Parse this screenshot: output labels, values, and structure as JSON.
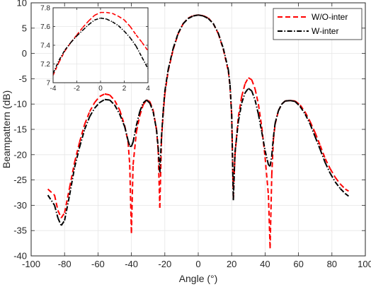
{
  "chart_data": [
    {
      "type": "line",
      "xlabel": "Angle (°)",
      "ylabel": "Beampattern (dB)",
      "xlim": [
        -100,
        100
      ],
      "ylim": [
        -40,
        10
      ],
      "xticks": [
        -100,
        -80,
        -60,
        -40,
        -20,
        0,
        20,
        40,
        60,
        80,
        100
      ],
      "yticks": [
        -40,
        -35,
        -30,
        -25,
        -20,
        -15,
        -10,
        -5,
        0,
        5,
        10
      ],
      "grid": true,
      "legend_position": "top-right",
      "series": [
        {
          "name": "W/O-inter",
          "color": "#ff0000",
          "style": "dashed",
          "x": [
            -90,
            -86,
            -84,
            -82,
            -80,
            -77,
            -74,
            -71,
            -68,
            -65,
            -62,
            -59,
            -56,
            -53,
            -50,
            -47,
            -44,
            -42,
            -41,
            -40,
            -39,
            -37,
            -35,
            -33,
            -31,
            -29,
            -27,
            -25,
            -24,
            -23,
            -22,
            -21,
            -20,
            -18,
            -15,
            -12,
            -9,
            -6,
            -3,
            0,
            3,
            6,
            9,
            12,
            15,
            18,
            19,
            20,
            21,
            22,
            24,
            26,
            28,
            30,
            32,
            34,
            36,
            38,
            40,
            42,
            43,
            44,
            45,
            46,
            48,
            50,
            52,
            55,
            58,
            61,
            64,
            67,
            70,
            73,
            76,
            79,
            82,
            85,
            88,
            90
          ],
          "y": [
            -26.8,
            -28,
            -31,
            -32.5,
            -31.5,
            -26.5,
            -21.5,
            -17.5,
            -14,
            -11.5,
            -9.7,
            -8.5,
            -8,
            -8.2,
            -9.3,
            -11.2,
            -14.3,
            -17.5,
            -22,
            -35.5,
            -22,
            -15.5,
            -12.3,
            -10.2,
            -9.2,
            -9.5,
            -11.2,
            -15,
            -19,
            -30.5,
            -17,
            -12,
            -8,
            -3.5,
            0.8,
            3.9,
            5.9,
            7,
            7.45,
            7.6,
            7.45,
            7,
            5.9,
            3.9,
            0.8,
            -3.5,
            -6.5,
            -12,
            -28.5,
            -20,
            -12.5,
            -8.5,
            -6,
            -4.8,
            -5.2,
            -7,
            -10,
            -14.5,
            -20.5,
            -28,
            -38.5,
            -24,
            -17,
            -14,
            -11.3,
            -10,
            -9.4,
            -9.3,
            -9.4,
            -10.2,
            -11.6,
            -13.5,
            -15.7,
            -18.2,
            -20.8,
            -22.8,
            -24.5,
            -25.8,
            -26.8,
            -27.2
          ]
        },
        {
          "name": "W-inter",
          "color": "#000000",
          "style": "dashdot",
          "x": [
            -90,
            -86,
            -84,
            -82,
            -80,
            -77,
            -74,
            -71,
            -68,
            -65,
            -62,
            -59,
            -56,
            -53,
            -50,
            -47,
            -44,
            -42,
            -41,
            -40,
            -39,
            -37,
            -35,
            -33,
            -31,
            -29,
            -27,
            -25,
            -24,
            -23,
            -22,
            -21,
            -20,
            -18,
            -15,
            -12,
            -9,
            -6,
            -3,
            0,
            3,
            6,
            9,
            12,
            15,
            18,
            19,
            20,
            21,
            22,
            24,
            26,
            28,
            30,
            32,
            34,
            36,
            38,
            40,
            42,
            43,
            44,
            45,
            46,
            48,
            50,
            52,
            55,
            58,
            61,
            64,
            67,
            70,
            73,
            76,
            79,
            82,
            85,
            88,
            90
          ],
          "y": [
            -28,
            -30,
            -32.5,
            -34,
            -33,
            -28,
            -22.5,
            -18.5,
            -15,
            -12.5,
            -10.8,
            -9.7,
            -9.1,
            -9.2,
            -10.2,
            -12,
            -14.5,
            -17.2,
            -18.3,
            -18.4,
            -17.5,
            -14.2,
            -11.5,
            -9.8,
            -9.2,
            -9.8,
            -11.5,
            -15,
            -18.5,
            -23.5,
            -16.5,
            -11.5,
            -7.5,
            -3.2,
            1,
            4,
            5.9,
            6.9,
            7.4,
            7.6,
            7.4,
            6.9,
            5.9,
            4,
            1,
            -3.2,
            -6.2,
            -12,
            -29,
            -19.5,
            -13.5,
            -9.8,
            -7.8,
            -6.9,
            -7.4,
            -9.2,
            -12,
            -15.5,
            -19.2,
            -22,
            -22.3,
            -20.2,
            -16.5,
            -13.8,
            -11.3,
            -10,
            -9.4,
            -9.3,
            -9.5,
            -10.5,
            -12,
            -14,
            -16.5,
            -19,
            -21.6,
            -23.7,
            -25.4,
            -26.7,
            -27.7,
            -28.2
          ]
        }
      ]
    },
    {
      "type": "line",
      "role": "inset",
      "xlim": [
        -4,
        4
      ],
      "ylim": [
        7,
        7.8
      ],
      "xticks": [
        -4,
        -2,
        0,
        2,
        4
      ],
      "yticks": [
        7,
        7.2,
        7.4,
        7.6,
        7.8
      ],
      "ytick_labels": [
        "7",
        "7.2",
        "7.4",
        "7.6",
        "7.8"
      ],
      "grid": true,
      "series": [
        {
          "name": "W/O-inter",
          "color": "#ff0000",
          "style": "dashed",
          "x": [
            -4,
            -3.5,
            -3,
            -2.5,
            -2,
            -1.5,
            -1,
            -0.5,
            0,
            0.5,
            1,
            1.5,
            2,
            2.5,
            3,
            3.5,
            4
          ],
          "y": [
            7.08,
            7.22,
            7.34,
            7.43,
            7.51,
            7.59,
            7.66,
            7.72,
            7.75,
            7.75,
            7.74,
            7.71,
            7.67,
            7.6,
            7.51,
            7.43,
            7.34
          ]
        },
        {
          "name": "W-inter",
          "color": "#000000",
          "style": "dashdot",
          "x": [
            -4,
            -3.5,
            -3,
            -2.5,
            -2,
            -1.5,
            -1,
            -0.5,
            0,
            0.5,
            1,
            1.5,
            2,
            2.5,
            3,
            3.5,
            4
          ],
          "y": [
            7.1,
            7.24,
            7.35,
            7.43,
            7.5,
            7.56,
            7.62,
            7.67,
            7.69,
            7.68,
            7.65,
            7.61,
            7.55,
            7.48,
            7.39,
            7.27,
            7.15
          ]
        }
      ]
    }
  ]
}
